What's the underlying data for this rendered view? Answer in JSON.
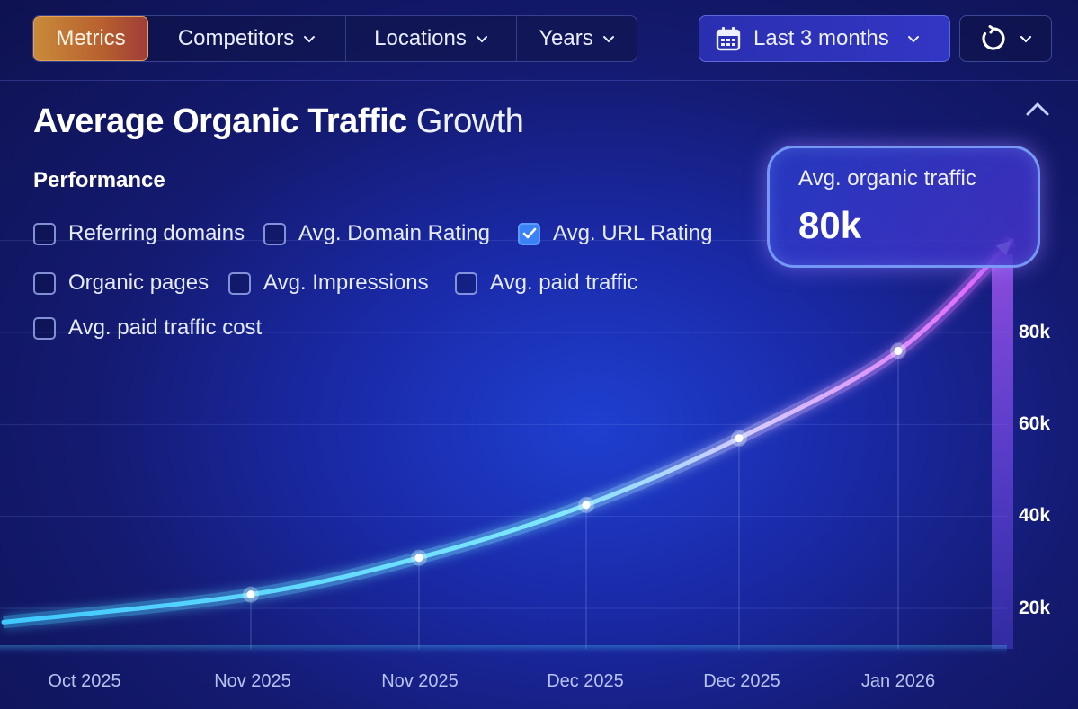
{
  "toolbar": {
    "tabs": [
      {
        "label": "Metrics",
        "active": true
      },
      {
        "label": "Competitors",
        "dropdown": true
      },
      {
        "label": "Locations",
        "dropdown": true
      },
      {
        "label": "Years",
        "dropdown": true
      }
    ],
    "date_range": {
      "label": "Last 3 months",
      "icon": "calendar-icon"
    },
    "refresh": {
      "icon": "refresh-icon"
    }
  },
  "header": {
    "title_bold": "Average Organic Traffic",
    "title_rest": "Growth",
    "collapse_icon": "chevron-up-icon"
  },
  "performance": {
    "label": "Performance",
    "options": [
      {
        "label": "Referring domains",
        "checked": false
      },
      {
        "label": "Avg. Domain Rating",
        "checked": false
      },
      {
        "label": "Avg. URL Rating",
        "checked": true
      },
      {
        "label": "Organic pages",
        "checked": false
      },
      {
        "label": "Avg. Impressions",
        "checked": false
      },
      {
        "label": "Avg. paid traffic",
        "checked": false
      },
      {
        "label": "Avg. paid traffic cost",
        "checked": false
      }
    ]
  },
  "tooltip": {
    "label": "Avg. organic traffic",
    "value": "80k"
  },
  "colors": {
    "accent": "#3b82f6",
    "metrics_tab": "#c07a35",
    "line_start": "#4fd8ff",
    "line_end": "#e05cff"
  },
  "chart_data": {
    "type": "line",
    "x_tick_labels": [
      "Oct 2025",
      "Nov 2025",
      "Nov 2025",
      "Dec 2025",
      "Dec 2025",
      "Jan 2026"
    ],
    "y_tick_labels": [
      "20k",
      "40k",
      "60k",
      "80k"
    ],
    "ylim": [
      5000,
      90000
    ],
    "grid": true,
    "y_axis_side": "right",
    "series": [
      {
        "points": [
          {
            "x": -0.5,
            "y": 17000
          },
          {
            "x": 1,
            "y": 23000
          },
          {
            "x": 2,
            "y": 31000
          },
          {
            "x": 3,
            "y": 42500
          },
          {
            "x": 4,
            "y": 57000
          },
          {
            "x": 5,
            "y": 76000
          },
          {
            "x": 5.7,
            "y": 100000
          }
        ],
        "markers": [
          1,
          2,
          3,
          4,
          5
        ]
      }
    ]
  }
}
